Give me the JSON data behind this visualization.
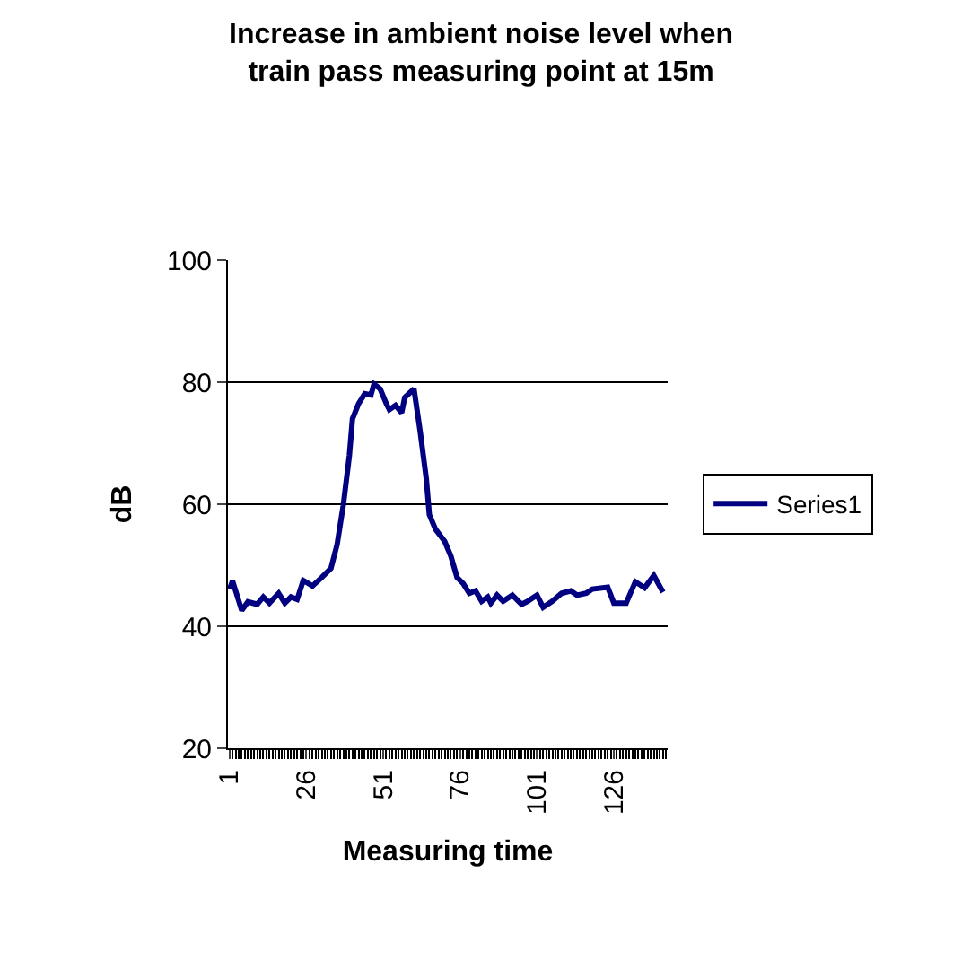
{
  "chart_data": {
    "type": "line",
    "title": "Increase in ambient noise level when train pass measuring point at 15m",
    "xlabel": "Measuring time",
    "ylabel": "dB",
    "x": [
      1,
      2,
      5,
      7,
      10,
      12,
      14,
      17,
      19,
      21,
      23,
      25,
      28,
      31,
      34,
      36,
      38,
      40,
      41,
      43,
      45,
      47,
      48,
      50,
      52,
      53,
      55,
      57,
      58,
      61,
      63,
      65,
      66,
      68,
      71,
      73,
      75,
      77,
      79,
      81,
      83,
      85,
      86,
      88,
      90,
      93,
      96,
      98,
      101,
      103,
      106,
      109,
      112,
      114,
      117,
      119,
      124,
      126,
      130,
      133,
      136,
      139,
      142
    ],
    "series": [
      {
        "name": "Series1",
        "color": "#000080",
        "values": [
          46.1,
          47.4,
          42.6,
          44,
          43.6,
          44.8,
          43.8,
          45.4,
          43.8,
          44.8,
          44.4,
          47.5,
          46.6,
          48,
          49.5,
          53.4,
          59.8,
          68,
          74,
          76.5,
          78.1,
          77.9,
          79.7,
          78.9,
          76.5,
          75.5,
          76.2,
          75,
          77.5,
          78.9,
          72,
          64.2,
          58.3,
          55.9,
          53.9,
          51.5,
          48,
          47,
          45.4,
          45.8,
          44.1,
          44.8,
          43.8,
          45.1,
          44.1,
          45.1,
          43.6,
          44.1,
          45.1,
          43.1,
          44.1,
          45.4,
          45.8,
          45.1,
          45.4,
          46.1,
          46.4,
          43.8,
          43.8,
          47.3,
          46.3,
          48.3,
          45.6
        ]
      }
    ],
    "xlim": [
      0.5,
      143.5
    ],
    "xticks": [
      1,
      26,
      51,
      76,
      101,
      126
    ],
    "ylim": [
      20,
      100
    ],
    "yticks": [
      20,
      40,
      60,
      80,
      100
    ],
    "grid": "y",
    "legend": "right",
    "marker": "none",
    "line_style": "solid"
  }
}
